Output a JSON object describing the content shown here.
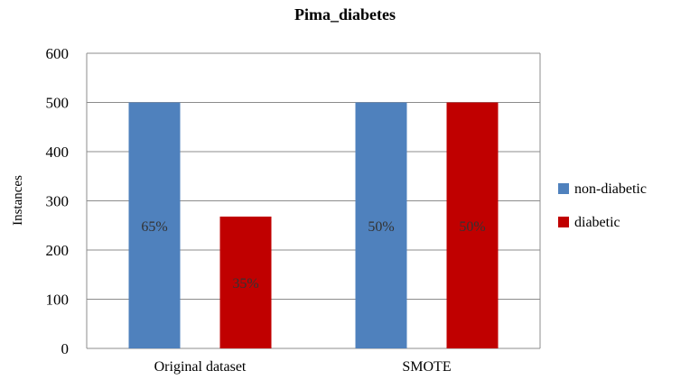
{
  "chart_data": {
    "type": "bar",
    "title": "Pima_diabetes",
    "xlabel": "",
    "ylabel": "Instances",
    "ylim": [
      0,
      600
    ],
    "yticks": [
      0,
      100,
      200,
      300,
      400,
      500,
      600
    ],
    "categories": [
      "Original dataset",
      "SMOTE"
    ],
    "series": [
      {
        "name": "non-diabetic",
        "color": "#4f81bd",
        "values": [
          500,
          500
        ],
        "labels": [
          "65%",
          "50%"
        ]
      },
      {
        "name": "diabetic",
        "color": "#c00000",
        "values": [
          268,
          500
        ],
        "labels": [
          "35%",
          "50%"
        ]
      }
    ],
    "grid": true,
    "legend_position": "right"
  }
}
